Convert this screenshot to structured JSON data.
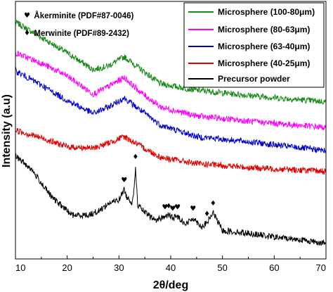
{
  "chart_data": {
    "type": "line",
    "xlabel": "2θ/deg",
    "ylabel": "Intensity (a.u)",
    "xlim": [
      10,
      70
    ],
    "ylim": [
      0,
      100
    ],
    "x_ticks": [
      10,
      20,
      30,
      40,
      50,
      60,
      70
    ],
    "y_ticks_shown": false,
    "grid": false,
    "legend_position": "top-right",
    "annotations": [
      {
        "symbol": "♥",
        "text": "Åkerminite (PDF#87-0046)"
      },
      {
        "symbol": "♦",
        "text": "Merwinite (PDF#89-2432)"
      }
    ],
    "peak_markers": [
      {
        "x": 31.0,
        "symbol": "♥"
      },
      {
        "x": 33.2,
        "symbol": "♦"
      },
      {
        "x": 38.9,
        "symbol": "♥"
      },
      {
        "x": 39.6,
        "symbol": "♦"
      },
      {
        "x": 40.4,
        "symbol": "♥"
      },
      {
        "x": 41.3,
        "symbol": "♥"
      },
      {
        "x": 44.3,
        "symbol": "♥"
      },
      {
        "x": 47.0,
        "symbol": "♦"
      },
      {
        "x": 48.2,
        "symbol": "♦"
      }
    ],
    "series": [
      {
        "name": "Microsphere (100-80μm)",
        "color": "#1a8a1a",
        "x": [
          10,
          15,
          20,
          25,
          28,
          31,
          34,
          38,
          45,
          55,
          70
        ],
        "y": [
          92,
          86,
          80,
          73.5,
          75,
          78.5,
          74,
          68,
          65.5,
          63.5,
          61
        ]
      },
      {
        "name": "Microsphere (80-63μm)",
        "color": "#ff00ff",
        "x": [
          10,
          15,
          20,
          25,
          28,
          31,
          34,
          38,
          45,
          55,
          70
        ],
        "y": [
          80,
          76,
          71,
          64,
          67,
          70.5,
          65,
          59,
          55.5,
          53.5,
          51
        ]
      },
      {
        "name": "Microsphere (63-40μm)",
        "color": "#0000cc",
        "x": [
          10,
          15,
          20,
          25,
          28,
          31,
          34,
          38,
          45,
          55,
          70
        ],
        "y": [
          73,
          67.5,
          61.5,
          56.5,
          59,
          62.5,
          58,
          52,
          47.5,
          45.5,
          42
        ]
      },
      {
        "name": "Microsphere (40-25μm)",
        "color": "#e00000",
        "x": [
          10,
          15,
          20,
          25,
          28,
          31,
          34,
          38,
          45,
          55,
          70
        ],
        "y": [
          50,
          47,
          43.5,
          43,
          45,
          47.5,
          44,
          39.5,
          37,
          35.5,
          34
        ]
      },
      {
        "name": "Precursor powder",
        "color": "#000000",
        "x": [
          10,
          13,
          17,
          21,
          24,
          26,
          28,
          30,
          31,
          31.5,
          32.5,
          33,
          33.2,
          33.6,
          35,
          37,
          38.9,
          39.6,
          40.4,
          41.3,
          43,
          44.3,
          46,
          47,
          48.2,
          50,
          55,
          60,
          65,
          70
        ],
        "y": [
          40,
          35,
          24,
          17,
          17,
          18.5,
          21.5,
          23,
          27,
          24,
          22,
          28,
          36,
          21,
          18,
          15,
          16.5,
          17,
          16,
          16.5,
          13.5,
          16,
          12.5,
          14,
          18,
          11,
          10,
          8.5,
          7.5,
          6
        ]
      }
    ]
  }
}
